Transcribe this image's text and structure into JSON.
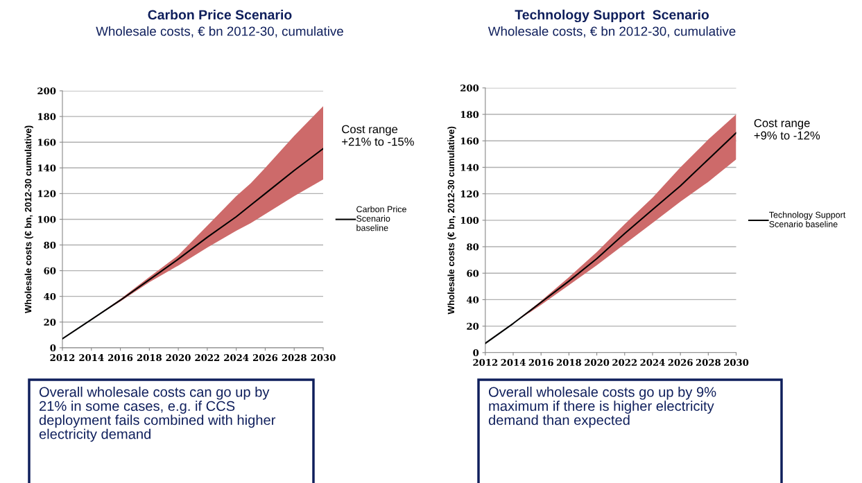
{
  "chart_data": [
    {
      "type": "line",
      "title": "Carbon Price Scenario",
      "subtitle": "Wholesale costs, € bn 2012-30, cumulative",
      "ylabel": "Wholesale costs (€ bn, 2012-30 cumulative)",
      "x": [
        2012,
        2014,
        2016,
        2018,
        2020,
        2022,
        2024,
        2025,
        2026,
        2028,
        2030
      ],
      "series": [
        {
          "name": "Carbon Price\nScenario\nbaseline",
          "color": "#000000",
          "values": [
            7,
            22,
            37,
            53,
            69,
            86,
            102,
            111,
            120,
            138,
            155
          ],
          "lower": [
            7,
            22,
            36,
            51,
            64,
            78,
            91,
            97,
            104,
            118,
            131
          ],
          "upper": [
            7,
            22,
            38,
            55,
            72,
            95,
            118,
            128,
            140,
            165,
            188
          ]
        }
      ],
      "xlim": [
        2012,
        2030
      ],
      "xticks": [
        2012,
        2014,
        2016,
        2018,
        2020,
        2022,
        2024,
        2026,
        2028,
        2030
      ],
      "ylim": [
        0,
        200
      ],
      "yticks": [
        0,
        20,
        40,
        60,
        80,
        100,
        120,
        140,
        160,
        180,
        200
      ],
      "grid": "y",
      "legend": "right",
      "marker": "none",
      "line_style": "solid",
      "annotations": [
        "Cost range\n+21% to -15%",
        "Overall wholesale costs can go up by\n21% in some cases, e.g. if CCS\ndeployment fails combined with higher\nelectricity demand"
      ]
    },
    {
      "type": "line",
      "title": "Technology Support  Scenario",
      "subtitle": "Wholesale costs, € bn 2012-30, cumulative",
      "ylabel": "Wholesale costs (€ bn, 2012-30 cumulative)",
      "x": [
        2012,
        2014,
        2016,
        2018,
        2020,
        2022,
        2024,
        2026,
        2028,
        2030
      ],
      "series": [
        {
          "name": "Technology Support\nScenario baseline",
          "color": "#000000",
          "values": [
            7,
            22,
            38,
            54,
            71,
            90,
            108,
            126,
            146,
            166
          ],
          "lower": [
            7,
            22,
            36,
            51,
            66,
            82,
            98,
            114,
            129,
            146
          ],
          "upper": [
            7,
            22,
            39,
            57,
            76,
            97,
            117,
            140,
            161,
            180
          ]
        }
      ],
      "xlim": [
        2012,
        2030
      ],
      "xticks": [
        2012,
        2014,
        2016,
        2018,
        2020,
        2022,
        2024,
        2026,
        2028,
        2030
      ],
      "ylim": [
        0,
        200
      ],
      "yticks": [
        0,
        20,
        40,
        60,
        80,
        100,
        120,
        140,
        160,
        180,
        200
      ],
      "grid": "y",
      "legend": "right",
      "marker": "none",
      "line_style": "solid",
      "annotations": [
        "Cost range\n+9% to -12%",
        "Overall wholesale costs go up by 9%\nmaximum if there is higher electricity\ndemand than expected"
      ]
    }
  ]
}
